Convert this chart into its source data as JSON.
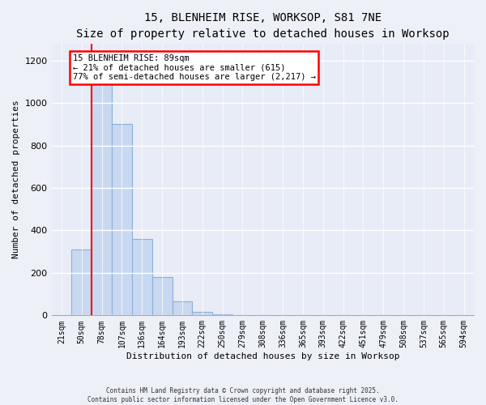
{
  "title": "15, BLENHEIM RISE, WORKSOP, S81 7NE",
  "subtitle": "Size of property relative to detached houses in Worksop",
  "xlabel": "Distribution of detached houses by size in Worksop",
  "ylabel": "Number of detached properties",
  "categories": [
    "21sqm",
    "50sqm",
    "78sqm",
    "107sqm",
    "136sqm",
    "164sqm",
    "193sqm",
    "222sqm",
    "250sqm",
    "279sqm",
    "308sqm",
    "336sqm",
    "365sqm",
    "393sqm",
    "422sqm",
    "451sqm",
    "479sqm",
    "508sqm",
    "537sqm",
    "565sqm",
    "594sqm"
  ],
  "values": [
    0,
    310,
    1150,
    900,
    360,
    180,
    65,
    15,
    5,
    2,
    1,
    1,
    0,
    0,
    0,
    0,
    0,
    0,
    0,
    0,
    0
  ],
  "bar_color": "#c8d8f0",
  "bar_edge_color": "#8ab0d8",
  "red_line_index": 2,
  "annotation_text1": "15 BLENHEIM RISE: 89sqm",
  "annotation_text2": "← 21% of detached houses are smaller (615)",
  "annotation_text3": "77% of semi-detached houses are larger (2,217) →",
  "ylim": [
    0,
    1280
  ],
  "yticks": [
    0,
    200,
    400,
    600,
    800,
    1000,
    1200
  ],
  "footer_line1": "Contains HM Land Registry data © Crown copyright and database right 2025.",
  "footer_line2": "Contains public sector information licensed under the Open Government Licence v3.0.",
  "bg_color": "#eef0f8",
  "plot_bg_color": "#e8ecf6"
}
